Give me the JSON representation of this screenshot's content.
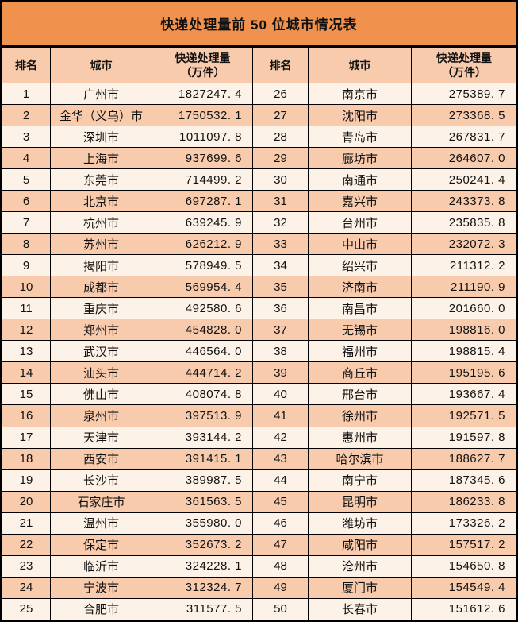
{
  "title": "快递处理量前 50 位城市情况表",
  "header": {
    "rank": "排名",
    "city": "城市",
    "volume_line1": "快递处理量",
    "volume_line2": "（万件）"
  },
  "colors": {
    "title_bg": "#F0914D",
    "header_bg": "#F8CBAD",
    "row_even_bg": "#F8CBAD",
    "row_odd_bg": "#FDF2E7",
    "border_color": "#000000",
    "text_color": "#111111"
  },
  "chart_data": {
    "type": "table",
    "title": "快递处理量前 50 位城市情况表",
    "columns": [
      "排名",
      "城市",
      "快递处理量（万件）",
      "排名",
      "城市",
      "快递处理量（万件）"
    ],
    "rows": [
      [
        1,
        "广州市",
        "1827247.4",
        26,
        "南京市",
        "275389.7"
      ],
      [
        2,
        "金华（义乌）市",
        "1750532.1",
        27,
        "沈阳市",
        "273368.5"
      ],
      [
        3,
        "深圳市",
        "1011097.8",
        28,
        "青岛市",
        "267831.7"
      ],
      [
        4,
        "上海市",
        "937699.6",
        29,
        "廊坊市",
        "264607.0"
      ],
      [
        5,
        "东莞市",
        "714499.2",
        30,
        "南通市",
        "250241.4"
      ],
      [
        6,
        "北京市",
        "697287.1",
        31,
        "嘉兴市",
        "243373.8"
      ],
      [
        7,
        "杭州市",
        "639245.9",
        32,
        "台州市",
        "235835.8"
      ],
      [
        8,
        "苏州市",
        "626212.9",
        33,
        "中山市",
        "232072.3"
      ],
      [
        9,
        "揭阳市",
        "578949.5",
        34,
        "绍兴市",
        "211312.2"
      ],
      [
        10,
        "成都市",
        "569954.4",
        35,
        "济南市",
        "211190.9"
      ],
      [
        11,
        "重庆市",
        "492580.6",
        36,
        "南昌市",
        "201660.0"
      ],
      [
        12,
        "郑州市",
        "454828.0",
        37,
        "无锡市",
        "198816.0"
      ],
      [
        13,
        "武汉市",
        "446564.0",
        38,
        "福州市",
        "198815.4"
      ],
      [
        14,
        "汕头市",
        "444714.2",
        39,
        "商丘市",
        "195195.6"
      ],
      [
        15,
        "佛山市",
        "408074.8",
        40,
        "邢台市",
        "193667.4"
      ],
      [
        16,
        "泉州市",
        "397513.9",
        41,
        "徐州市",
        "192571.5"
      ],
      [
        17,
        "天津市",
        "393144.2",
        42,
        "惠州市",
        "191597.8"
      ],
      [
        18,
        "西安市",
        "391415.1",
        43,
        "哈尔滨市",
        "188627.7"
      ],
      [
        19,
        "长沙市",
        "389987.5",
        44,
        "南宁市",
        "187345.6"
      ],
      [
        20,
        "石家庄市",
        "361563.5",
        45,
        "昆明市",
        "186233.8"
      ],
      [
        21,
        "温州市",
        "355980.0",
        46,
        "潍坊市",
        "173326.2"
      ],
      [
        22,
        "保定市",
        "352673.2",
        47,
        "咸阳市",
        "157517.2"
      ],
      [
        23,
        "临沂市",
        "324228.1",
        48,
        "沧州市",
        "154650.8"
      ],
      [
        24,
        "宁波市",
        "312324.7",
        49,
        "厦门市",
        "154549.4"
      ],
      [
        25,
        "合肥市",
        "311577.5",
        50,
        "长春市",
        "151612.6"
      ]
    ]
  }
}
